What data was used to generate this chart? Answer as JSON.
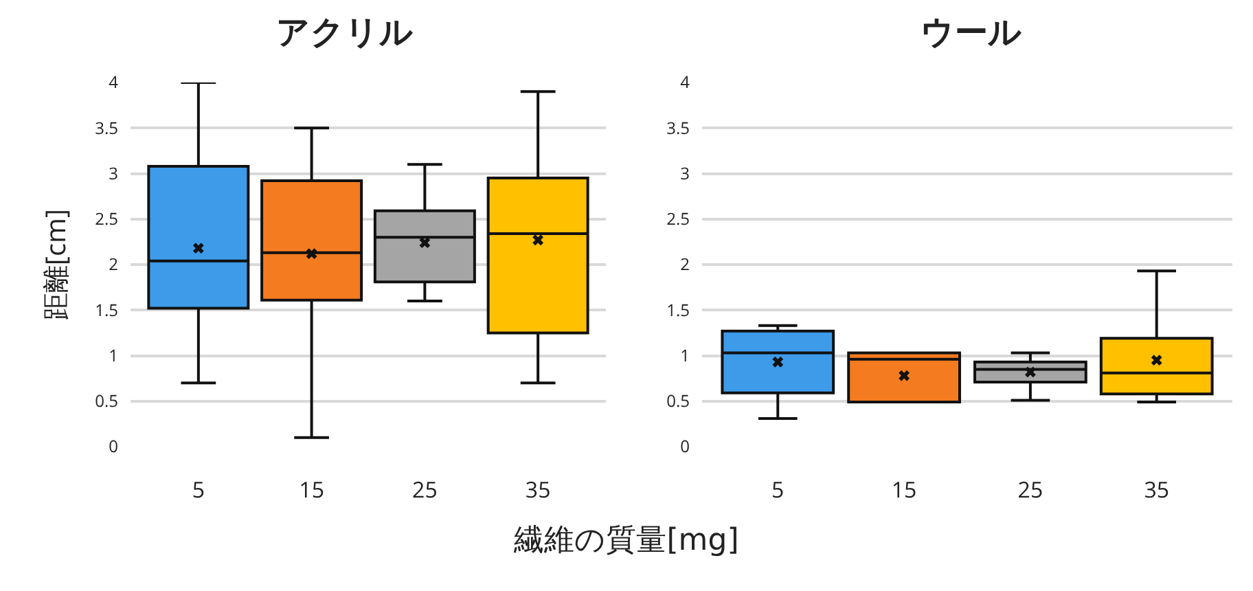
{
  "chart_data": [
    {
      "type": "box",
      "title": "アクリル",
      "ylabel": "距離[cm]",
      "xlabel": "繊維の質量[mg]",
      "categories": [
        "5",
        "15",
        "25",
        "35"
      ],
      "colors": [
        "#3d9be9",
        "#f47b20",
        "#a5a5a5",
        "#ffc000"
      ],
      "ylim": [
        0,
        4
      ],
      "yticks": [
        0,
        0.5,
        1,
        1.5,
        2,
        2.5,
        3,
        3.5,
        4
      ],
      "grid": "y",
      "boxes": [
        {
          "low": 0.7,
          "q1": 1.52,
          "median": 2.04,
          "q3": 3.08,
          "high": 4.0,
          "mean": 2.18
        },
        {
          "low": 0.1,
          "q1": 1.61,
          "median": 2.13,
          "q3": 2.92,
          "high": 3.5,
          "mean": 2.12
        },
        {
          "low": 1.6,
          "q1": 1.81,
          "median": 2.3,
          "q3": 2.59,
          "high": 3.1,
          "mean": 2.24
        },
        {
          "low": 0.7,
          "q1": 1.25,
          "median": 2.34,
          "q3": 2.95,
          "high": 3.9,
          "mean": 2.27
        }
      ]
    },
    {
      "type": "box",
      "title": "ウール",
      "categories": [
        "5",
        "15",
        "25",
        "35"
      ],
      "colors": [
        "#3d9be9",
        "#f47b20",
        "#a5a5a5",
        "#ffc000"
      ],
      "ylim": [
        0,
        4
      ],
      "yticks": [
        0,
        0.5,
        1,
        1.5,
        2,
        2.5,
        3,
        3.5,
        4
      ],
      "grid": "y",
      "boxes": [
        {
          "low": 0.31,
          "q1": 0.59,
          "median": 1.03,
          "q3": 1.27,
          "high": 1.33,
          "mean": 0.93
        },
        {
          "low": 0.49,
          "q1": 0.49,
          "median": 0.96,
          "q3": 1.03,
          "high": 1.03,
          "mean": 0.78
        },
        {
          "low": 0.51,
          "q1": 0.71,
          "median": 0.85,
          "q3": 0.93,
          "high": 1.03,
          "mean": 0.82
        },
        {
          "low": 0.49,
          "q1": 0.58,
          "median": 0.81,
          "q3": 1.19,
          "high": 1.93,
          "mean": 0.95
        }
      ]
    }
  ]
}
